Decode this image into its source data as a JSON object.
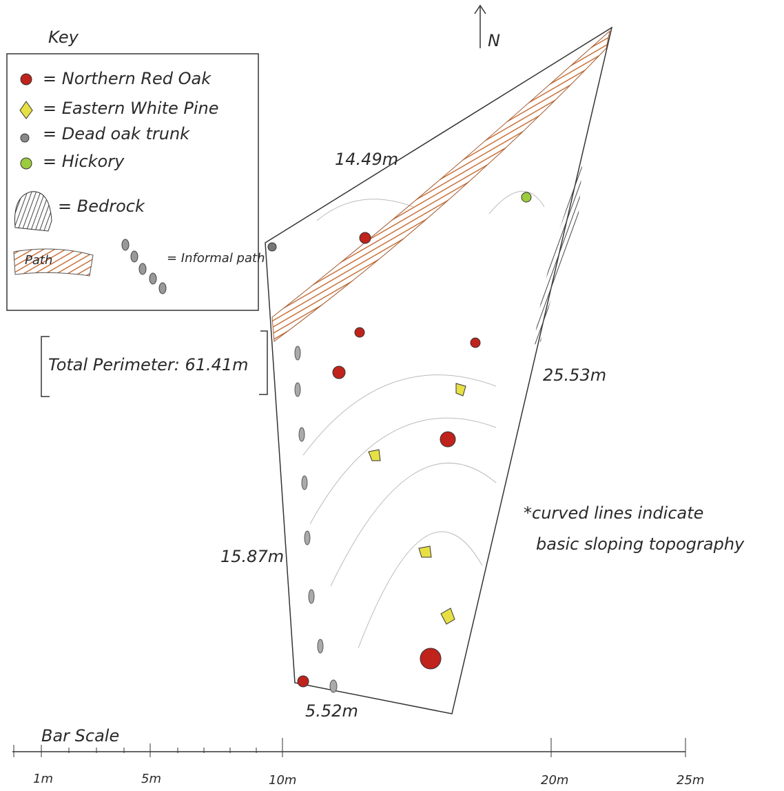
{
  "key": {
    "title": "Key",
    "items": [
      "= Northern Red Oak",
      "= Eastern White Pine",
      "= Dead oak trunk",
      "= Hickory",
      "= Bedrock",
      "Path",
      "= Informal path"
    ]
  },
  "north": "N",
  "sides": {
    "north": "14.49m",
    "east": "25.53m",
    "west": "15.87m",
    "south": "5.52m"
  },
  "perimeter": "Total Perimeter: 61.41m",
  "note": [
    "*curved lines indicate",
    "basic sloping topography"
  ],
  "scale": {
    "title": "Bar Scale",
    "labels": [
      "1m",
      "5m",
      "10m",
      "20m",
      "25m"
    ]
  }
}
